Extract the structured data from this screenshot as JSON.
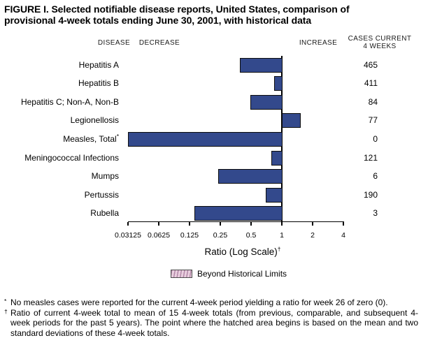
{
  "title": {
    "line1": "FIGURE I. Selected notifiable disease reports, United States, comparison of",
    "line2": "provisional 4-week totals ending June 30, 2001, with historical data"
  },
  "headers": {
    "disease": "DISEASE",
    "decrease": "DECREASE",
    "increase": "INCREASE",
    "cases_line1": "CASES CURRENT",
    "cases_line2": "4 WEEKS"
  },
  "chart_data": {
    "type": "bar",
    "orientation": "horizontal",
    "scale": "log2",
    "baseline_value": 1,
    "xlabel": "Ratio (Log Scale)",
    "xlabel_footnote_marker": "†",
    "x_ticks": [
      {
        "value": 0.03125,
        "label": "0.03125"
      },
      {
        "value": 0.0625,
        "label": "0.0625"
      },
      {
        "value": 0.125,
        "label": "0.125"
      },
      {
        "value": 0.25,
        "label": "0.25"
      },
      {
        "value": 0.5,
        "label": "0.5"
      },
      {
        "value": 1,
        "label": "1"
      },
      {
        "value": 2,
        "label": "2"
      },
      {
        "value": 4,
        "label": "4"
      }
    ],
    "rows": [
      {
        "disease": "Hepatitis A",
        "marker": "",
        "ratio": 0.39,
        "cases": "465"
      },
      {
        "disease": "Hepatitis B",
        "marker": "",
        "ratio": 0.84,
        "cases": "411"
      },
      {
        "disease": "Hepatitis C; Non-A, Non-B",
        "marker": "",
        "ratio": 0.49,
        "cases": "84"
      },
      {
        "disease": "Legionellosis",
        "marker": "",
        "ratio": 1.5,
        "cases": "77"
      },
      {
        "disease": "Measles, Total",
        "marker": "*",
        "ratio": 0,
        "cases": "0"
      },
      {
        "disease": "Meningococcal Infections",
        "marker": "",
        "ratio": 0.79,
        "cases": "121"
      },
      {
        "disease": "Mumps",
        "marker": "",
        "ratio": 0.24,
        "cases": "6"
      },
      {
        "disease": "Pertussis",
        "marker": "",
        "ratio": 0.7,
        "cases": "190"
      },
      {
        "disease": "Rubella",
        "marker": "",
        "ratio": 0.14,
        "cases": "3"
      }
    ],
    "legend": {
      "label": "Beyond Historical Limits",
      "swatch_style": "hatched"
    },
    "colors": {
      "bar": "#33498c",
      "legend_base": "#e9cede",
      "legend_stripe": "#b288a8"
    }
  },
  "footnotes": [
    {
      "marker": "*",
      "text": "No measles cases were reported for the current 4-week period yielding a ratio for week 26 of zero (0)."
    },
    {
      "marker": "†",
      "text": "Ratio of current 4-week total to mean of 15 4-week totals (from previous, comparable, and subsequent 4-week periods for the past 5 years). The point where the hatched area begins is based on the mean and two standard deviations of these 4-week totals."
    }
  ]
}
